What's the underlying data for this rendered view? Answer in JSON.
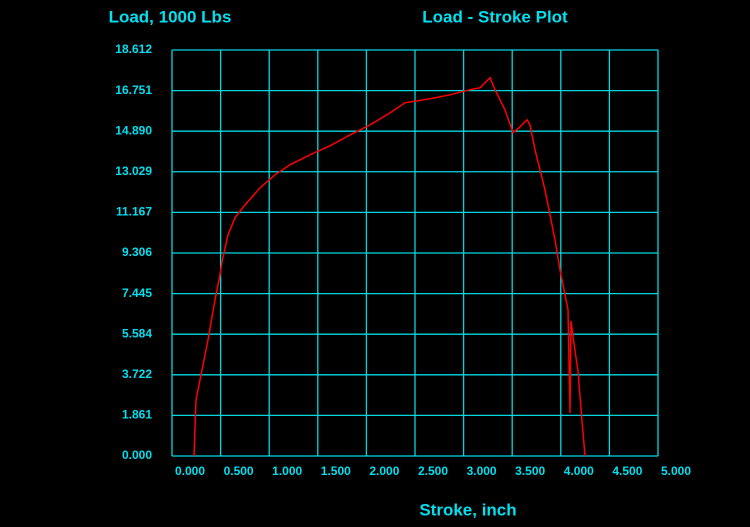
{
  "chart_data": {
    "type": "line",
    "title": "Load - Stroke Plot",
    "y_label": "Load, 1000 Lbs",
    "x_label": "Stroke, inch",
    "x": [
      0.226,
      0.247,
      0.288,
      0.37,
      0.442,
      0.494,
      0.514,
      0.576,
      0.648,
      0.751,
      0.905,
      1.06,
      1.214,
      1.42,
      1.626,
      1.831,
      2.037,
      2.243,
      2.397,
      2.654,
      2.86,
      3.066,
      3.169,
      3.272,
      3.323,
      3.426,
      3.508,
      3.58,
      3.652,
      3.683,
      3.735,
      3.837,
      3.94,
      3.992,
      4.053,
      4.074,
      4.095,
      4.105,
      4.146,
      4.177,
      4.218,
      4.249
    ],
    "series": [
      {
        "color": "#ff0000",
        "values": [
          0,
          2.57,
          3.49,
          5.32,
          7.16,
          8.3,
          8.9,
          10.14,
          10.92,
          11.51,
          12.29,
          12.89,
          13.35,
          13.81,
          14.22,
          14.72,
          15.18,
          15.73,
          16.19,
          16.38,
          16.56,
          16.79,
          16.88,
          17.34,
          16.79,
          15.87,
          14.82,
          15.09,
          15.41,
          15.18,
          14.04,
          12.2,
          9.91,
          8.53,
          7.16,
          6.7,
          1.97,
          6.19,
          4.82,
          3.9,
          1.61,
          0
        ]
      }
    ],
    "xlim": [
      0,
      5
    ],
    "ylim": [
      0,
      18.612
    ],
    "xticks": [
      {
        "value": 0,
        "label": "0.000"
      },
      {
        "value": 0.5,
        "label": "0.500"
      },
      {
        "value": 1,
        "label": "1.000"
      },
      {
        "value": 1.5,
        "label": "1.500"
      },
      {
        "value": 2,
        "label": "2.000"
      },
      {
        "value": 2.5,
        "label": "2.500"
      },
      {
        "value": 3,
        "label": "3.000"
      },
      {
        "value": 3.5,
        "label": "3.500"
      },
      {
        "value": 4,
        "label": "4.000"
      },
      {
        "value": 4.5,
        "label": "4.500"
      },
      {
        "value": 5,
        "label": "5.000"
      }
    ],
    "yticks": [
      {
        "value": 0,
        "label": "0.000"
      },
      1.861,
      3.722,
      5.584,
      7.445,
      9.306,
      11.167,
      13.029,
      {
        "value": 14.89,
        "label": "14.890"
      },
      16.751,
      18.612
    ],
    "grid": true,
    "grid_color": "#00d8e0",
    "text_color": "#00e0f0",
    "background": "#000000"
  }
}
